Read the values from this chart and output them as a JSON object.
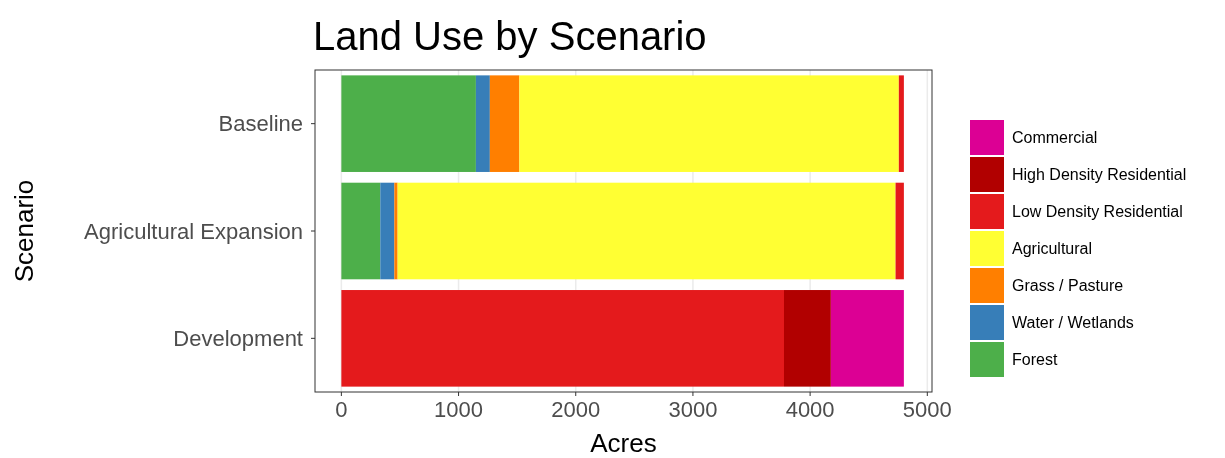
{
  "chart_data": {
    "type": "bar",
    "orientation": "horizontal",
    "stacked": true,
    "title": "Land Use by Scenario",
    "xlabel": "Acres",
    "ylabel": "Scenario",
    "categories": [
      "Baseline",
      "Agricultural Expansion",
      "Development"
    ],
    "series": [
      {
        "name": "Forest",
        "color": "#4daf4a",
        "values": [
          1148,
          332,
          0
        ]
      },
      {
        "name": "Water / Wetlands",
        "color": "#377eb8",
        "values": [
          119,
          120,
          0
        ]
      },
      {
        "name": "Grass / Pasture",
        "color": "#ff7f00",
        "values": [
          252,
          28,
          0
        ]
      },
      {
        "name": "Agricultural",
        "color": "#ffff33",
        "values": [
          3238,
          4249,
          0
        ]
      },
      {
        "name": "Low Density Residential",
        "color": "#e41a1c",
        "values": [
          43,
          71,
          3777
        ]
      },
      {
        "name": "High Density Residential",
        "color": "#b10000",
        "values": [
          0,
          0,
          400
        ]
      },
      {
        "name": "Commercial",
        "color": "#dc0094",
        "values": [
          0,
          0,
          623
        ]
      }
    ],
    "xlim": [
      -225,
      5040
    ],
    "xticks": [
      0,
      1000,
      2000,
      3000,
      4000,
      5000
    ],
    "grid": "x",
    "legend": "right"
  }
}
